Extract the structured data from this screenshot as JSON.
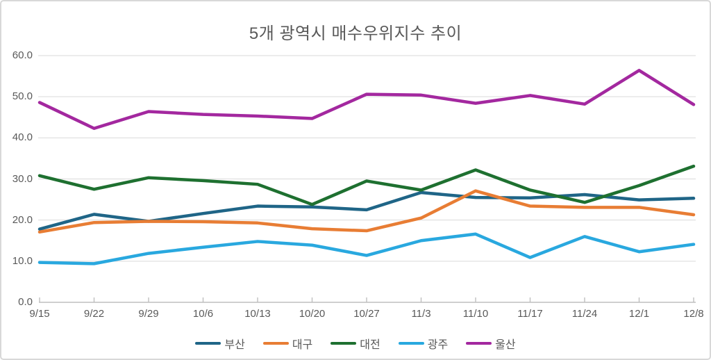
{
  "title": "5개 광역시 매수우위지수 추이",
  "chart_data": {
    "type": "line",
    "title": "5개 광역시 매수우위지수 추이",
    "categories": [
      "9/15",
      "9/22",
      "9/29",
      "10/6",
      "10/13",
      "10/20",
      "10/27",
      "11/3",
      "11/10",
      "11/17",
      "11/24",
      "12/1",
      "12/8"
    ],
    "series": [
      {
        "name": "부산",
        "color": "#1F6587",
        "values": [
          17.8,
          21.4,
          19.7,
          21.6,
          23.4,
          23.2,
          22.5,
          26.7,
          25.5,
          25.4,
          26.2,
          24.9,
          25.3
        ]
      },
      {
        "name": "대구",
        "color": "#E87D34",
        "values": [
          17.1,
          19.4,
          19.7,
          19.6,
          19.3,
          17.9,
          17.4,
          20.5,
          27.1,
          23.4,
          23.1,
          23.1,
          21.3
        ]
      },
      {
        "name": "대전",
        "color": "#1E7030",
        "values": [
          30.8,
          27.5,
          30.3,
          29.6,
          28.7,
          23.8,
          29.5,
          27.3,
          32.2,
          27.3,
          24.3,
          28.4,
          33.1
        ]
      },
      {
        "name": "광주",
        "color": "#29A8DF",
        "values": [
          9.7,
          9.4,
          11.9,
          13.4,
          14.8,
          13.9,
          11.4,
          15.0,
          16.6,
          10.9,
          16.0,
          12.3,
          14.1
        ]
      },
      {
        "name": "울산",
        "color": "#A3289F",
        "values": [
          48.6,
          42.3,
          46.4,
          45.7,
          45.3,
          44.7,
          50.6,
          50.4,
          48.4,
          50.3,
          48.2,
          56.4,
          48.1
        ]
      }
    ],
    "ylim": [
      0,
      60
    ],
    "yticks": [
      "0.0",
      "10.0",
      "20.0",
      "30.0",
      "40.0",
      "50.0",
      "60.0"
    ],
    "xlabel": "",
    "ylabel": "",
    "grid": true,
    "legend_position": "bottom",
    "colors": {
      "grid": "#D9D9D9",
      "axis": "#BFBFBF",
      "tick": "#BFBFBF",
      "text": "#595959"
    }
  }
}
